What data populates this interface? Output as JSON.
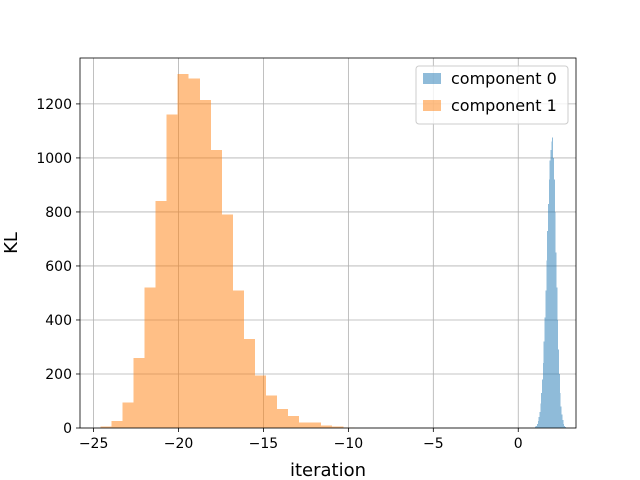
{
  "chart_data": {
    "type": "bar",
    "title": "",
    "xlabel": "iteration",
    "ylabel": "KL",
    "xlim": [
      -25.8,
      3.4
    ],
    "ylim": [
      0,
      1370
    ],
    "xticks": [
      -25,
      -20,
      -15,
      -10,
      -5,
      0
    ],
    "yticks": [
      0,
      200,
      400,
      600,
      800,
      1000,
      1200
    ],
    "xtick_labels": [
      "−25",
      "−20",
      "−15",
      "−10",
      "−5",
      "0"
    ],
    "ytick_labels": [
      "0",
      "200",
      "400",
      "600",
      "800",
      "1000",
      "1200"
    ],
    "grid": true,
    "legend_position": "top-right",
    "series": [
      {
        "name": "component 0",
        "color": "#1f77b4",
        "alpha": 0.5,
        "bins": [
          {
            "x0": 1.0,
            "x1": 1.05,
            "v": 5
          },
          {
            "x0": 1.05,
            "x1": 1.1,
            "v": 8
          },
          {
            "x0": 1.1,
            "x1": 1.15,
            "v": 15
          },
          {
            "x0": 1.15,
            "x1": 1.2,
            "v": 25
          },
          {
            "x0": 1.2,
            "x1": 1.25,
            "v": 40
          },
          {
            "x0": 1.25,
            "x1": 1.3,
            "v": 60
          },
          {
            "x0": 1.3,
            "x1": 1.35,
            "v": 90
          },
          {
            "x0": 1.35,
            "x1": 1.4,
            "v": 130
          },
          {
            "x0": 1.4,
            "x1": 1.45,
            "v": 180
          },
          {
            "x0": 1.45,
            "x1": 1.5,
            "v": 240
          },
          {
            "x0": 1.5,
            "x1": 1.55,
            "v": 320
          },
          {
            "x0": 1.55,
            "x1": 1.6,
            "v": 410
          },
          {
            "x0": 1.6,
            "x1": 1.65,
            "v": 510
          },
          {
            "x0": 1.65,
            "x1": 1.7,
            "v": 620
          },
          {
            "x0": 1.7,
            "x1": 1.75,
            "v": 730
          },
          {
            "x0": 1.75,
            "x1": 1.8,
            "v": 830
          },
          {
            "x0": 1.8,
            "x1": 1.85,
            "v": 920
          },
          {
            "x0": 1.85,
            "x1": 1.9,
            "v": 990
          },
          {
            "x0": 1.9,
            "x1": 1.95,
            "v": 1030
          },
          {
            "x0": 1.95,
            "x1": 2.0,
            "v": 1060
          },
          {
            "x0": 2.0,
            "x1": 2.05,
            "v": 1075
          },
          {
            "x0": 2.05,
            "x1": 2.1,
            "v": 1000
          },
          {
            "x0": 2.1,
            "x1": 2.15,
            "v": 920
          },
          {
            "x0": 2.15,
            "x1": 2.2,
            "v": 800
          },
          {
            "x0": 2.2,
            "x1": 2.25,
            "v": 650
          },
          {
            "x0": 2.25,
            "x1": 2.3,
            "v": 520
          },
          {
            "x0": 2.3,
            "x1": 2.35,
            "v": 400
          },
          {
            "x0": 2.35,
            "x1": 2.4,
            "v": 290
          },
          {
            "x0": 2.4,
            "x1": 2.45,
            "v": 200
          },
          {
            "x0": 2.45,
            "x1": 2.5,
            "v": 130
          },
          {
            "x0": 2.5,
            "x1": 2.55,
            "v": 80
          },
          {
            "x0": 2.55,
            "x1": 2.6,
            "v": 50
          },
          {
            "x0": 2.6,
            "x1": 2.65,
            "v": 30
          },
          {
            "x0": 2.65,
            "x1": 2.7,
            "v": 15
          },
          {
            "x0": 2.7,
            "x1": 2.75,
            "v": 8
          },
          {
            "x0": 2.75,
            "x1": 2.8,
            "v": 4
          }
        ]
      },
      {
        "name": "component 1",
        "color": "#ff7f0e",
        "alpha": 0.5,
        "bins": [
          {
            "x0": -24.6,
            "x1": -23.95,
            "v": 5
          },
          {
            "x0": -23.95,
            "x1": -23.3,
            "v": 25
          },
          {
            "x0": -23.3,
            "x1": -22.65,
            "v": 95
          },
          {
            "x0": -22.65,
            "x1": -22.0,
            "v": 260
          },
          {
            "x0": -22.0,
            "x1": -21.35,
            "v": 520
          },
          {
            "x0": -21.35,
            "x1": -20.7,
            "v": 840
          },
          {
            "x0": -20.7,
            "x1": -20.05,
            "v": 1160
          },
          {
            "x0": -20.05,
            "x1": -19.4,
            "v": 1310
          },
          {
            "x0": -19.4,
            "x1": -18.75,
            "v": 1295
          },
          {
            "x0": -18.75,
            "x1": -18.1,
            "v": 1215
          },
          {
            "x0": -18.1,
            "x1": -17.45,
            "v": 1030
          },
          {
            "x0": -17.45,
            "x1": -16.8,
            "v": 790
          },
          {
            "x0": -16.8,
            "x1": -16.15,
            "v": 510
          },
          {
            "x0": -16.15,
            "x1": -15.5,
            "v": 330
          },
          {
            "x0": -15.5,
            "x1": -14.85,
            "v": 195
          },
          {
            "x0": -14.85,
            "x1": -14.2,
            "v": 120
          },
          {
            "x0": -14.2,
            "x1": -13.55,
            "v": 70
          },
          {
            "x0": -13.55,
            "x1": -12.9,
            "v": 45
          },
          {
            "x0": -12.9,
            "x1": -12.25,
            "v": 20
          },
          {
            "x0": -12.25,
            "x1": -11.6,
            "v": 20
          },
          {
            "x0": -11.6,
            "x1": -10.95,
            "v": 10
          },
          {
            "x0": -10.95,
            "x1": -10.3,
            "v": 5
          },
          {
            "x0": -10.3,
            "x1": -9.65,
            "v": 2
          }
        ]
      }
    ]
  }
}
